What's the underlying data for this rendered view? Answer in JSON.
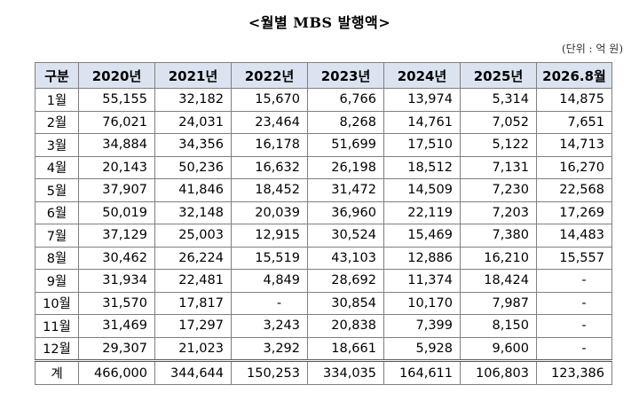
{
  "title": "<월별 MBS 발행액>",
  "unit": "(단위 : 억 원)",
  "table": {
    "headers": [
      "구분",
      "2020년",
      "2021년",
      "2022년",
      "2023년",
      "2024년",
      "2025년",
      "2026.8월"
    ],
    "rows": [
      [
        "1월",
        "55,155",
        "32,182",
        "15,670",
        "6,766",
        "13,974",
        "5,314",
        "14,875"
      ],
      [
        "2월",
        "76,021",
        "24,031",
        "23,464",
        "8,268",
        "14,761",
        "7,052",
        "7,651"
      ],
      [
        "3월",
        "34,884",
        "34,356",
        "16,178",
        "51,699",
        "17,510",
        "5,122",
        "14,713"
      ],
      [
        "4월",
        "20,143",
        "50,236",
        "16,632",
        "26,198",
        "18,512",
        "7,131",
        "16,270"
      ],
      [
        "5월",
        "37,907",
        "41,846",
        "18,452",
        "31,472",
        "14,509",
        "7,230",
        "22,568"
      ],
      [
        "6월",
        "50,019",
        "32,148",
        "20,039",
        "36,960",
        "22,119",
        "7,203",
        "17,269"
      ],
      [
        "7월",
        "37,129",
        "25,003",
        "12,915",
        "30,524",
        "15,469",
        "7,380",
        "14,483"
      ],
      [
        "8월",
        "30,462",
        "26,224",
        "15,519",
        "43,103",
        "12,886",
        "16,210",
        "15,557"
      ],
      [
        "9월",
        "31,934",
        "22,481",
        "4,849",
        "28,692",
        "11,374",
        "18,424",
        "-"
      ],
      [
        "10월",
        "31,570",
        "17,817",
        "-",
        "30,854",
        "10,170",
        "7,987",
        "-"
      ],
      [
        "11월",
        "31,469",
        "17,297",
        "3,243",
        "20,838",
        "7,399",
        "8,150",
        "-"
      ],
      [
        "12월",
        "29,307",
        "21,023",
        "3,292",
        "18,661",
        "5,928",
        "9,600",
        "-"
      ]
    ],
    "total": [
      "계",
      "466,000",
      "344,644",
      "150,253",
      "334,035",
      "164,611",
      "106,803",
      "123,386"
    ]
  }
}
